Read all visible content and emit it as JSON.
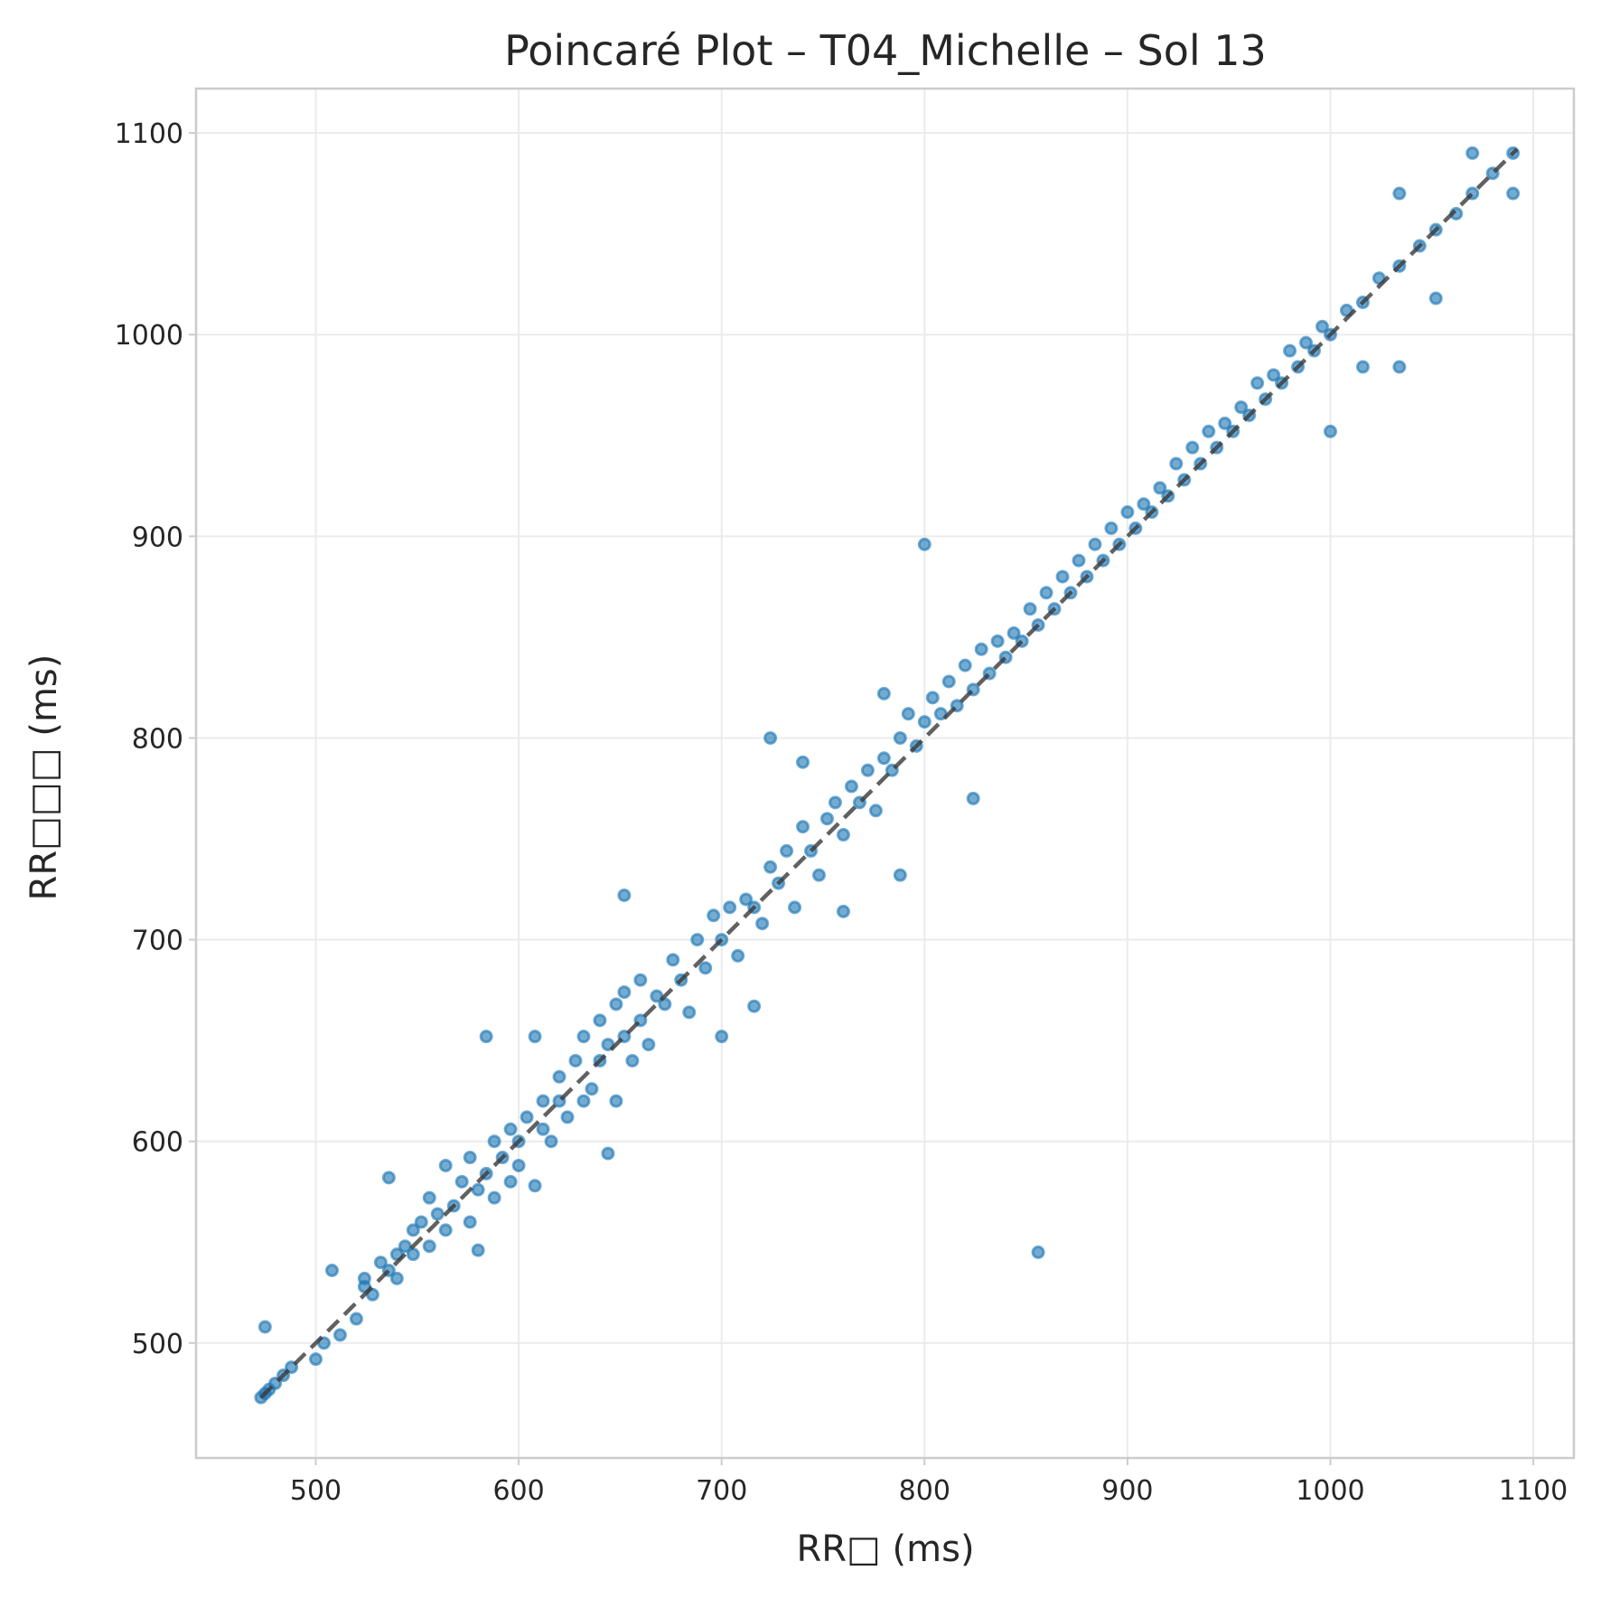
{
  "chart_data": {
    "type": "scatter",
    "title": "Poincaré Plot – T04_Michelle – Sol 13",
    "xlabel": "RR□ (ms)",
    "ylabel": "RR□□□ (ms)",
    "xlim": [
      441,
      1120
    ],
    "ylim": [
      443,
      1122
    ],
    "xticks": [
      500,
      600,
      700,
      800,
      900,
      1000,
      1100
    ],
    "yticks": [
      500,
      600,
      700,
      800,
      900,
      1000,
      1100
    ],
    "grid": true,
    "legend": "none",
    "point_color": "#1f77b4",
    "identity_line": {
      "from": [
        473,
        473
      ],
      "to": [
        1092,
        1092
      ],
      "style": "dashed",
      "color": "#3a3a3a"
    },
    "series": [
      {
        "points": [
          [
            473,
            473
          ],
          [
            475,
            475
          ],
          [
            477,
            477
          ],
          [
            480,
            480
          ],
          [
            484,
            484
          ],
          [
            488,
            488
          ],
          [
            475,
            508
          ],
          [
            500,
            492
          ],
          [
            504,
            500
          ],
          [
            512,
            504
          ],
          [
            508,
            536
          ],
          [
            520,
            512
          ],
          [
            524,
            528
          ],
          [
            524,
            532
          ],
          [
            528,
            524
          ],
          [
            532,
            540
          ],
          [
            536,
            536
          ],
          [
            536,
            582
          ],
          [
            540,
            532
          ],
          [
            540,
            544
          ],
          [
            544,
            548
          ],
          [
            548,
            544
          ],
          [
            548,
            556
          ],
          [
            552,
            560
          ],
          [
            556,
            548
          ],
          [
            556,
            572
          ],
          [
            560,
            564
          ],
          [
            564,
            556
          ],
          [
            564,
            588
          ],
          [
            568,
            568
          ],
          [
            572,
            580
          ],
          [
            576,
            560
          ],
          [
            576,
            592
          ],
          [
            580,
            546
          ],
          [
            580,
            576
          ],
          [
            584,
            584
          ],
          [
            584,
            652
          ],
          [
            588,
            572
          ],
          [
            588,
            600
          ],
          [
            592,
            592
          ],
          [
            596,
            580
          ],
          [
            596,
            606
          ],
          [
            600,
            600
          ],
          [
            600,
            588
          ],
          [
            604,
            612
          ],
          [
            608,
            578
          ],
          [
            608,
            652
          ],
          [
            612,
            606
          ],
          [
            612,
            620
          ],
          [
            616,
            600
          ],
          [
            620,
            620
          ],
          [
            620,
            632
          ],
          [
            624,
            612
          ],
          [
            628,
            640
          ],
          [
            632,
            620
          ],
          [
            632,
            652
          ],
          [
            636,
            626
          ],
          [
            640,
            640
          ],
          [
            640,
            660
          ],
          [
            644,
            648
          ],
          [
            644,
            594
          ],
          [
            648,
            620
          ],
          [
            648,
            668
          ],
          [
            652,
            652
          ],
          [
            652,
            674
          ],
          [
            652,
            722
          ],
          [
            656,
            640
          ],
          [
            660,
            660
          ],
          [
            660,
            680
          ],
          [
            664,
            648
          ],
          [
            668,
            672
          ],
          [
            672,
            668
          ],
          [
            676,
            690
          ],
          [
            680,
            680
          ],
          [
            684,
            664
          ],
          [
            688,
            700
          ],
          [
            692,
            686
          ],
          [
            696,
            712
          ],
          [
            700,
            700
          ],
          [
            700,
            652
          ],
          [
            704,
            716
          ],
          [
            708,
            692
          ],
          [
            712,
            720
          ],
          [
            716,
            716
          ],
          [
            716,
            667
          ],
          [
            720,
            708
          ],
          [
            724,
            736
          ],
          [
            724,
            800
          ],
          [
            728,
            728
          ],
          [
            732,
            744
          ],
          [
            736,
            716
          ],
          [
            740,
            756
          ],
          [
            740,
            788
          ],
          [
            744,
            744
          ],
          [
            748,
            732
          ],
          [
            752,
            760
          ],
          [
            756,
            768
          ],
          [
            760,
            752
          ],
          [
            760,
            714
          ],
          [
            764,
            776
          ],
          [
            768,
            768
          ],
          [
            772,
            784
          ],
          [
            776,
            764
          ],
          [
            780,
            790
          ],
          [
            780,
            822
          ],
          [
            784,
            784
          ],
          [
            788,
            800
          ],
          [
            788,
            732
          ],
          [
            792,
            812
          ],
          [
            796,
            796
          ],
          [
            800,
            808
          ],
          [
            800,
            896
          ],
          [
            804,
            820
          ],
          [
            808,
            812
          ],
          [
            812,
            828
          ],
          [
            816,
            816
          ],
          [
            820,
            836
          ],
          [
            824,
            824
          ],
          [
            824,
            770
          ],
          [
            828,
            844
          ],
          [
            832,
            832
          ],
          [
            836,
            848
          ],
          [
            840,
            840
          ],
          [
            844,
            852
          ],
          [
            848,
            848
          ],
          [
            852,
            864
          ],
          [
            856,
            856
          ],
          [
            856,
            545
          ],
          [
            860,
            872
          ],
          [
            864,
            864
          ],
          [
            868,
            880
          ],
          [
            872,
            872
          ],
          [
            876,
            888
          ],
          [
            880,
            880
          ],
          [
            884,
            896
          ],
          [
            888,
            888
          ],
          [
            892,
            904
          ],
          [
            896,
            896
          ],
          [
            900,
            912
          ],
          [
            904,
            904
          ],
          [
            908,
            916
          ],
          [
            912,
            912
          ],
          [
            916,
            924
          ],
          [
            920,
            920
          ],
          [
            924,
            936
          ],
          [
            928,
            928
          ],
          [
            932,
            944
          ],
          [
            936,
            936
          ],
          [
            940,
            952
          ],
          [
            944,
            944
          ],
          [
            948,
            956
          ],
          [
            952,
            952
          ],
          [
            956,
            964
          ],
          [
            960,
            960
          ],
          [
            964,
            976
          ],
          [
            968,
            968
          ],
          [
            972,
            980
          ],
          [
            976,
            976
          ],
          [
            980,
            992
          ],
          [
            984,
            984
          ],
          [
            988,
            996
          ],
          [
            992,
            992
          ],
          [
            996,
            1004
          ],
          [
            1000,
            1000
          ],
          [
            1000,
            952
          ],
          [
            1008,
            1012
          ],
          [
            1016,
            1016
          ],
          [
            1016,
            984
          ],
          [
            1024,
            1028
          ],
          [
            1034,
            1034
          ],
          [
            1034,
            1070
          ],
          [
            1034,
            984
          ],
          [
            1044,
            1044
          ],
          [
            1052,
            1052
          ],
          [
            1052,
            1018
          ],
          [
            1062,
            1060
          ],
          [
            1070,
            1070
          ],
          [
            1070,
            1090
          ],
          [
            1080,
            1080
          ],
          [
            1090,
            1090
          ],
          [
            1090,
            1070
          ]
        ]
      }
    ]
  }
}
